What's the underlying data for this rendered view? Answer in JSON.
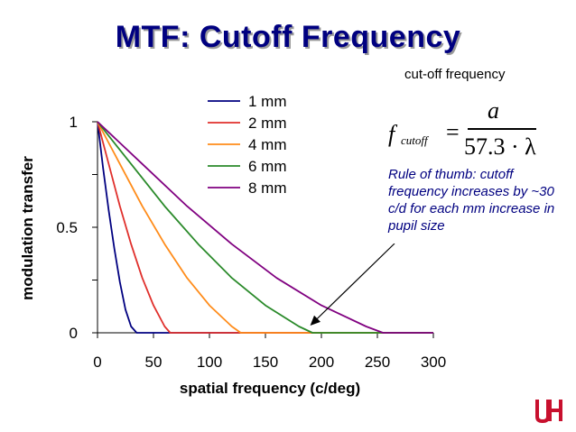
{
  "slide": {
    "title": "MTF: Cutoff Frequency"
  },
  "info_box": {
    "header": "cut-off frequency",
    "formula": {
      "f": "f",
      "subscript": "cutoff",
      "equals": "=",
      "numerator": "a",
      "denominator": "57.3 · λ"
    },
    "note": "Rule of thumb: cutoff frequency increases by ~30 c/d for each mm increase in pupil size"
  },
  "chart_data": {
    "type": "line",
    "xlabel": "spatial frequency (c/deg)",
    "ylabel": "modulation transfer",
    "xlim": [
      0,
      300
    ],
    "ylim": [
      0,
      1
    ],
    "xticks": [
      "0",
      "50",
      "100",
      "150",
      "200",
      "250",
      "300"
    ],
    "yticks": [
      "0",
      "0.5",
      "1"
    ],
    "grid": false,
    "legend_position": "top-right",
    "series": [
      {
        "name": "1 mm",
        "color": "#000080",
        "x": [
          0,
          5,
          10,
          15,
          20,
          25,
          30,
          35,
          300
        ],
        "y": [
          1,
          0.78,
          0.58,
          0.4,
          0.24,
          0.11,
          0.03,
          0,
          0
        ]
      },
      {
        "name": "2 mm",
        "color": "#e0302c",
        "x": [
          0,
          10,
          20,
          30,
          40,
          50,
          60,
          65,
          300
        ],
        "y": [
          1,
          0.8,
          0.6,
          0.42,
          0.26,
          0.13,
          0.03,
          0,
          0
        ]
      },
      {
        "name": "4 mm",
        "color": "#ff8c1a",
        "x": [
          0,
          20,
          40,
          60,
          80,
          100,
          120,
          128,
          300
        ],
        "y": [
          1,
          0.8,
          0.6,
          0.42,
          0.26,
          0.13,
          0.03,
          0,
          0
        ]
      },
      {
        "name": "6 mm",
        "color": "#2a8a2a",
        "x": [
          0,
          30,
          60,
          90,
          120,
          150,
          180,
          192,
          300
        ],
        "y": [
          1,
          0.8,
          0.6,
          0.42,
          0.26,
          0.13,
          0.03,
          0,
          0
        ]
      },
      {
        "name": "8 mm",
        "color": "#800080",
        "x": [
          0,
          40,
          80,
          120,
          160,
          200,
          240,
          255,
          300
        ],
        "y": [
          1,
          0.8,
          0.6,
          0.42,
          0.26,
          0.13,
          0.03,
          0,
          0
        ]
      }
    ],
    "annotation": {
      "points_to_x": 190,
      "points_to_y": 0
    }
  },
  "logo": {
    "color": "#c8102e"
  }
}
